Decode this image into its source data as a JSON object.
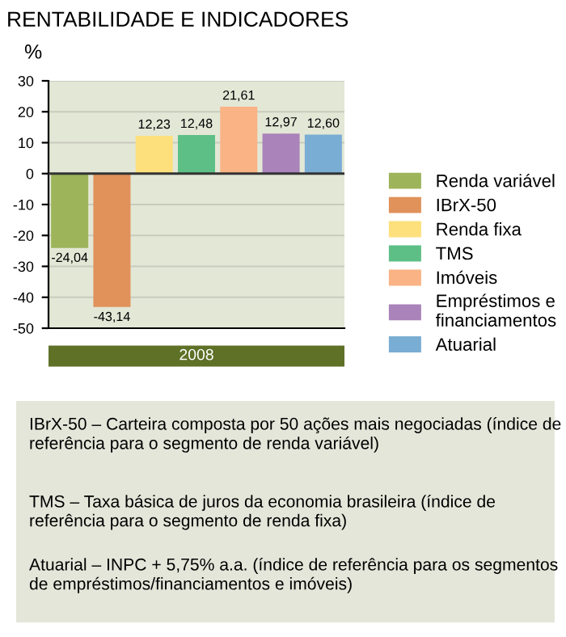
{
  "chart_data": {
    "type": "bar",
    "title": "RENTABILIDADE E INDICADORES",
    "ylabel": "%",
    "xlabel": "2008",
    "categories": [
      null,
      null,
      null,
      null,
      null,
      null,
      null
    ],
    "series": [
      {
        "name": "Renda variável",
        "color": "#9db45a",
        "values": [
          -24.04,
          null,
          null,
          null,
          null,
          null,
          null
        ],
        "value_labels": [
          "-24,04",
          null,
          null,
          null,
          null,
          null,
          null
        ]
      },
      {
        "name": "IBrX-50",
        "color": "#e0925a",
        "values": [
          null,
          -43.14,
          null,
          null,
          null,
          null,
          null
        ],
        "value_labels": [
          null,
          "-43,14",
          null,
          null,
          null,
          null,
          null
        ]
      },
      {
        "name": "Renda fixa",
        "color": "#fde07c",
        "values": [
          null,
          null,
          12.23,
          null,
          null,
          null,
          null
        ],
        "value_labels": [
          null,
          null,
          "12,23",
          null,
          null,
          null,
          null
        ]
      },
      {
        "name": "TMS",
        "color": "#5ebf86",
        "values": [
          null,
          null,
          null,
          12.48,
          null,
          null,
          null
        ],
        "value_labels": [
          null,
          null,
          null,
          "12,48",
          null,
          null,
          null
        ]
      },
      {
        "name": "Imóveis",
        "color": "#f9b385",
        "values": [
          null,
          null,
          null,
          null,
          21.61,
          null,
          null
        ],
        "value_labels": [
          null,
          null,
          null,
          null,
          "21,61",
          null,
          null
        ]
      },
      {
        "name": "Empréstimos e financiamentos",
        "color": "#a983b9",
        "values": [
          null,
          null,
          null,
          null,
          null,
          12.97,
          null
        ],
        "value_labels": [
          null,
          null,
          null,
          null,
          null,
          "12,97",
          null
        ]
      },
      {
        "name": "Atuarial",
        "color": "#7aadd3",
        "values": [
          null,
          null,
          null,
          null,
          null,
          null,
          12.6
        ],
        "value_labels": [
          null,
          null,
          null,
          null,
          null,
          null,
          "12,60"
        ]
      }
    ],
    "ylim": [
      -50,
      30
    ],
    "yticks": [
      -50,
      -40,
      -30,
      -20,
      -10,
      0,
      10,
      20,
      30
    ],
    "grid": "y",
    "legend": "right",
    "annotations": [
      "IBrX-50 – Carteira composta por 50 ações mais negociadas (índice de referência para o segmento de renda variável)",
      "TMS – Taxa básica de juros da economia brasileira (índice de referência para o segmento de renda fixa)",
      "Atuarial – INPC + 5,75% a.a. (índice de referência para os segmentos de empréstimos/financiamentos e imóveis)"
    ]
  }
}
